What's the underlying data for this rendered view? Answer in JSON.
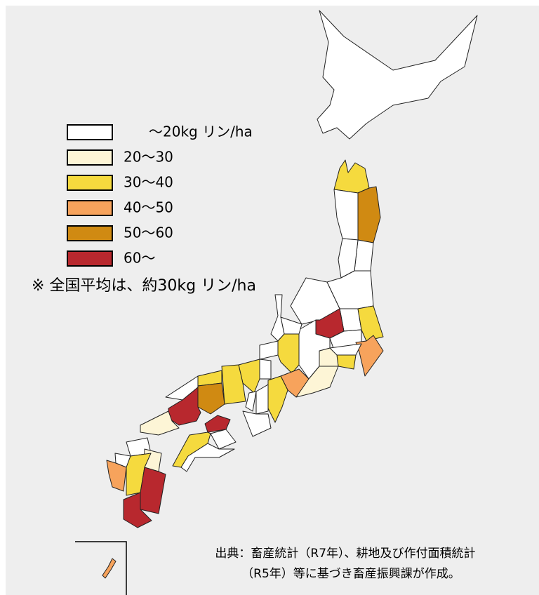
{
  "legend": [
    {
      "label": "～20kg リン/ha",
      "color": "#ffffff"
    },
    {
      "label": "20～30",
      "color": "#fdf5d6"
    },
    {
      "label": "30～40",
      "color": "#f5da3e"
    },
    {
      "label": "40～50",
      "color": "#f7a35c"
    },
    {
      "label": "50～60",
      "color": "#d08a12"
    },
    {
      "label": "60～",
      "color": "#b8282e"
    }
  ],
  "note": "※ 全国平均は、約30kg リン/ha",
  "source": [
    "出典：畜産統計（R7年）、耕地及び作付面積統計",
    "（R5年）等に基づき畜産振興課が作成。"
  ]
}
